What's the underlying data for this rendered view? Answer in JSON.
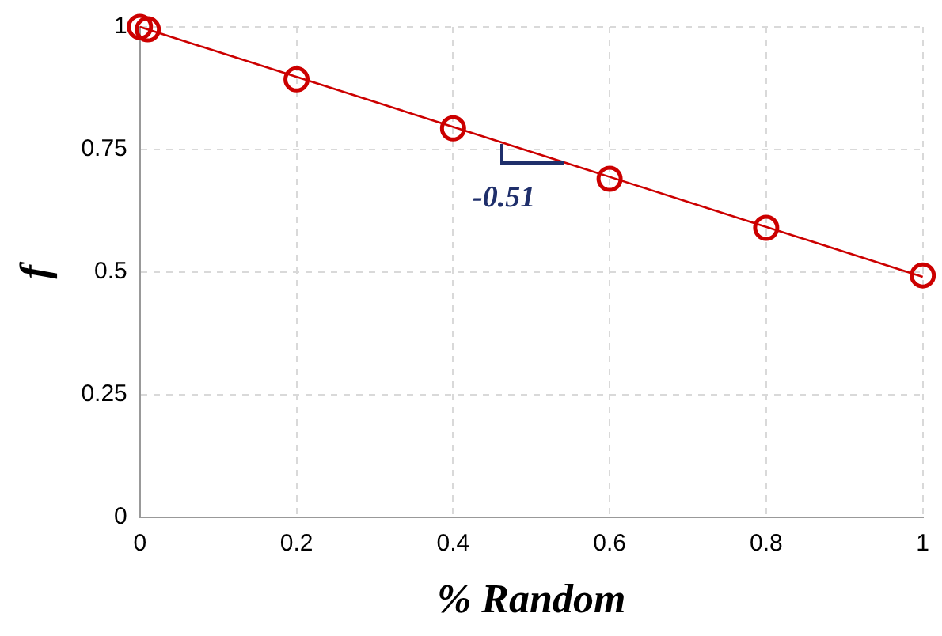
{
  "chart_data": {
    "type": "scatter",
    "xlabel": "% Random",
    "ylabel": "f",
    "xlim": [
      0,
      1
    ],
    "xticks": [
      0,
      0.2,
      0.4,
      0.6,
      0.8,
      1
    ],
    "ylim": [
      0,
      1
    ],
    "yticks": [
      0,
      0.25,
      0.5,
      0.75,
      1
    ],
    "series": [
      {
        "color": "#cc0000",
        "x": [
          0,
          0.01,
          0.2,
          0.4,
          0.6,
          0.8,
          1
        ],
        "values": [
          1,
          0.995,
          0.893,
          0.793,
          0.69,
          0.59,
          0.493
        ],
        "marker": "circle"
      },
      {
        "type": "line",
        "color": "#cc0000",
        "x": [
          0,
          1
        ],
        "values": [
          1,
          0.49
        ],
        "marker": "none"
      }
    ],
    "annotations": [
      "-0.51"
    ],
    "grid": true,
    "legend": false
  }
}
